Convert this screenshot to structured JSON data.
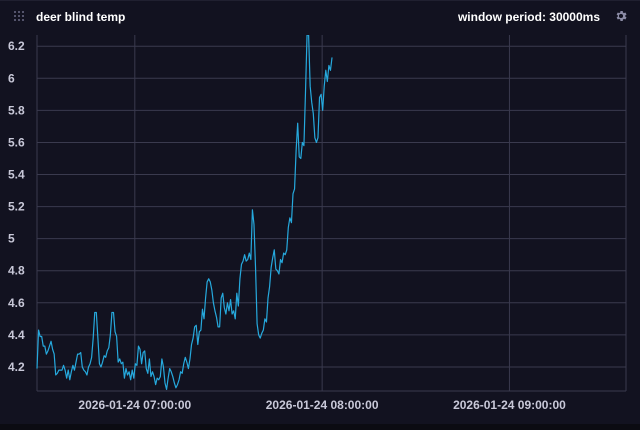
{
  "panel": {
    "title": "deer blind temp",
    "window_period": "window period: 30000ms",
    "icons": {
      "drag": "drag-handle-icon",
      "settings": "gear-icon"
    }
  },
  "colors": {
    "background": "#121220",
    "grid": "#3a3a4e",
    "line": "#26a9dd",
    "text": "#c8c8d8"
  },
  "chart_data": {
    "type": "line",
    "title": "deer blind temp",
    "xlabel": "",
    "ylabel": "",
    "ylim": [
      4.05,
      6.27
    ],
    "xlim": [
      "2026-01-24 06:28:40",
      "2026-01-24 09:37:20"
    ],
    "yticks": [
      "4.2",
      "4.4",
      "4.6",
      "4.8",
      "5",
      "5.2",
      "5.4",
      "5.6",
      "5.8",
      "6",
      "6.2"
    ],
    "xticks": [
      "2026-01-24 07:00:00",
      "2026-01-24 08:00:00",
      "2026-01-24 09:00:00"
    ],
    "grid": true,
    "legend": "none",
    "series": [
      {
        "x_start": "2026-01-24 06:28:40",
        "x_step_seconds": 30,
        "values": [
          4.19,
          4.43,
          4.39,
          4.39,
          4.33,
          4.33,
          4.28,
          4.3,
          4.33,
          4.36,
          4.31,
          4.28,
          4.15,
          4.16,
          4.18,
          4.18,
          4.18,
          4.21,
          4.18,
          4.13,
          4.18,
          4.12,
          4.17,
          4.21,
          4.18,
          4.23,
          4.28,
          4.28,
          4.29,
          4.2,
          4.18,
          4.17,
          4.15,
          4.2,
          4.22,
          4.26,
          4.38,
          4.54,
          4.54,
          4.38,
          4.22,
          4.2,
          4.23,
          4.27,
          4.26,
          4.3,
          4.32,
          4.4,
          4.54,
          4.54,
          4.42,
          4.39,
          4.23,
          4.25,
          4.22,
          4.23,
          4.13,
          4.19,
          4.15,
          4.17,
          4.12,
          4.18,
          4.13,
          4.22,
          4.21,
          4.33,
          4.31,
          4.22,
          4.29,
          4.3,
          4.19,
          4.16,
          4.25,
          4.14,
          4.17,
          4.14,
          4.09,
          4.13,
          4.12,
          4.14,
          4.25,
          4.2,
          4.1,
          4.06,
          4.13,
          4.19,
          4.17,
          4.14,
          4.1,
          4.07,
          4.09,
          4.12,
          4.17,
          4.16,
          4.22,
          4.26,
          4.23,
          4.19,
          4.25,
          4.34,
          4.38,
          4.45,
          4.46,
          4.34,
          4.42,
          4.43,
          4.56,
          4.5,
          4.63,
          4.73,
          4.75,
          4.73,
          4.68,
          4.6,
          4.55,
          4.51,
          4.45,
          4.45,
          4.63,
          4.66,
          4.57,
          4.53,
          4.6,
          4.55,
          4.62,
          4.53,
          4.55,
          4.5,
          4.66,
          4.58,
          4.75,
          4.84,
          4.86,
          4.9,
          4.86,
          4.87,
          4.91,
          4.87,
          5.18,
          5.09,
          4.82,
          4.47,
          4.4,
          4.38,
          4.41,
          4.43,
          4.5,
          4.48,
          4.63,
          4.7,
          4.82,
          4.88,
          4.93,
          4.81,
          4.8,
          4.78,
          4.87,
          4.85,
          4.91,
          4.9,
          4.93,
          5.07,
          5.13,
          5.1,
          5.28,
          5.31,
          5.55,
          5.72,
          5.51,
          5.5,
          5.6,
          5.58,
          5.91,
          6.27,
          6.3,
          5.95,
          5.85,
          5.78,
          5.63,
          5.6,
          5.63,
          5.88,
          5.9,
          5.8,
          5.95,
          6.05,
          5.98,
          6.08,
          6.05,
          6.13
        ]
      }
    ]
  }
}
